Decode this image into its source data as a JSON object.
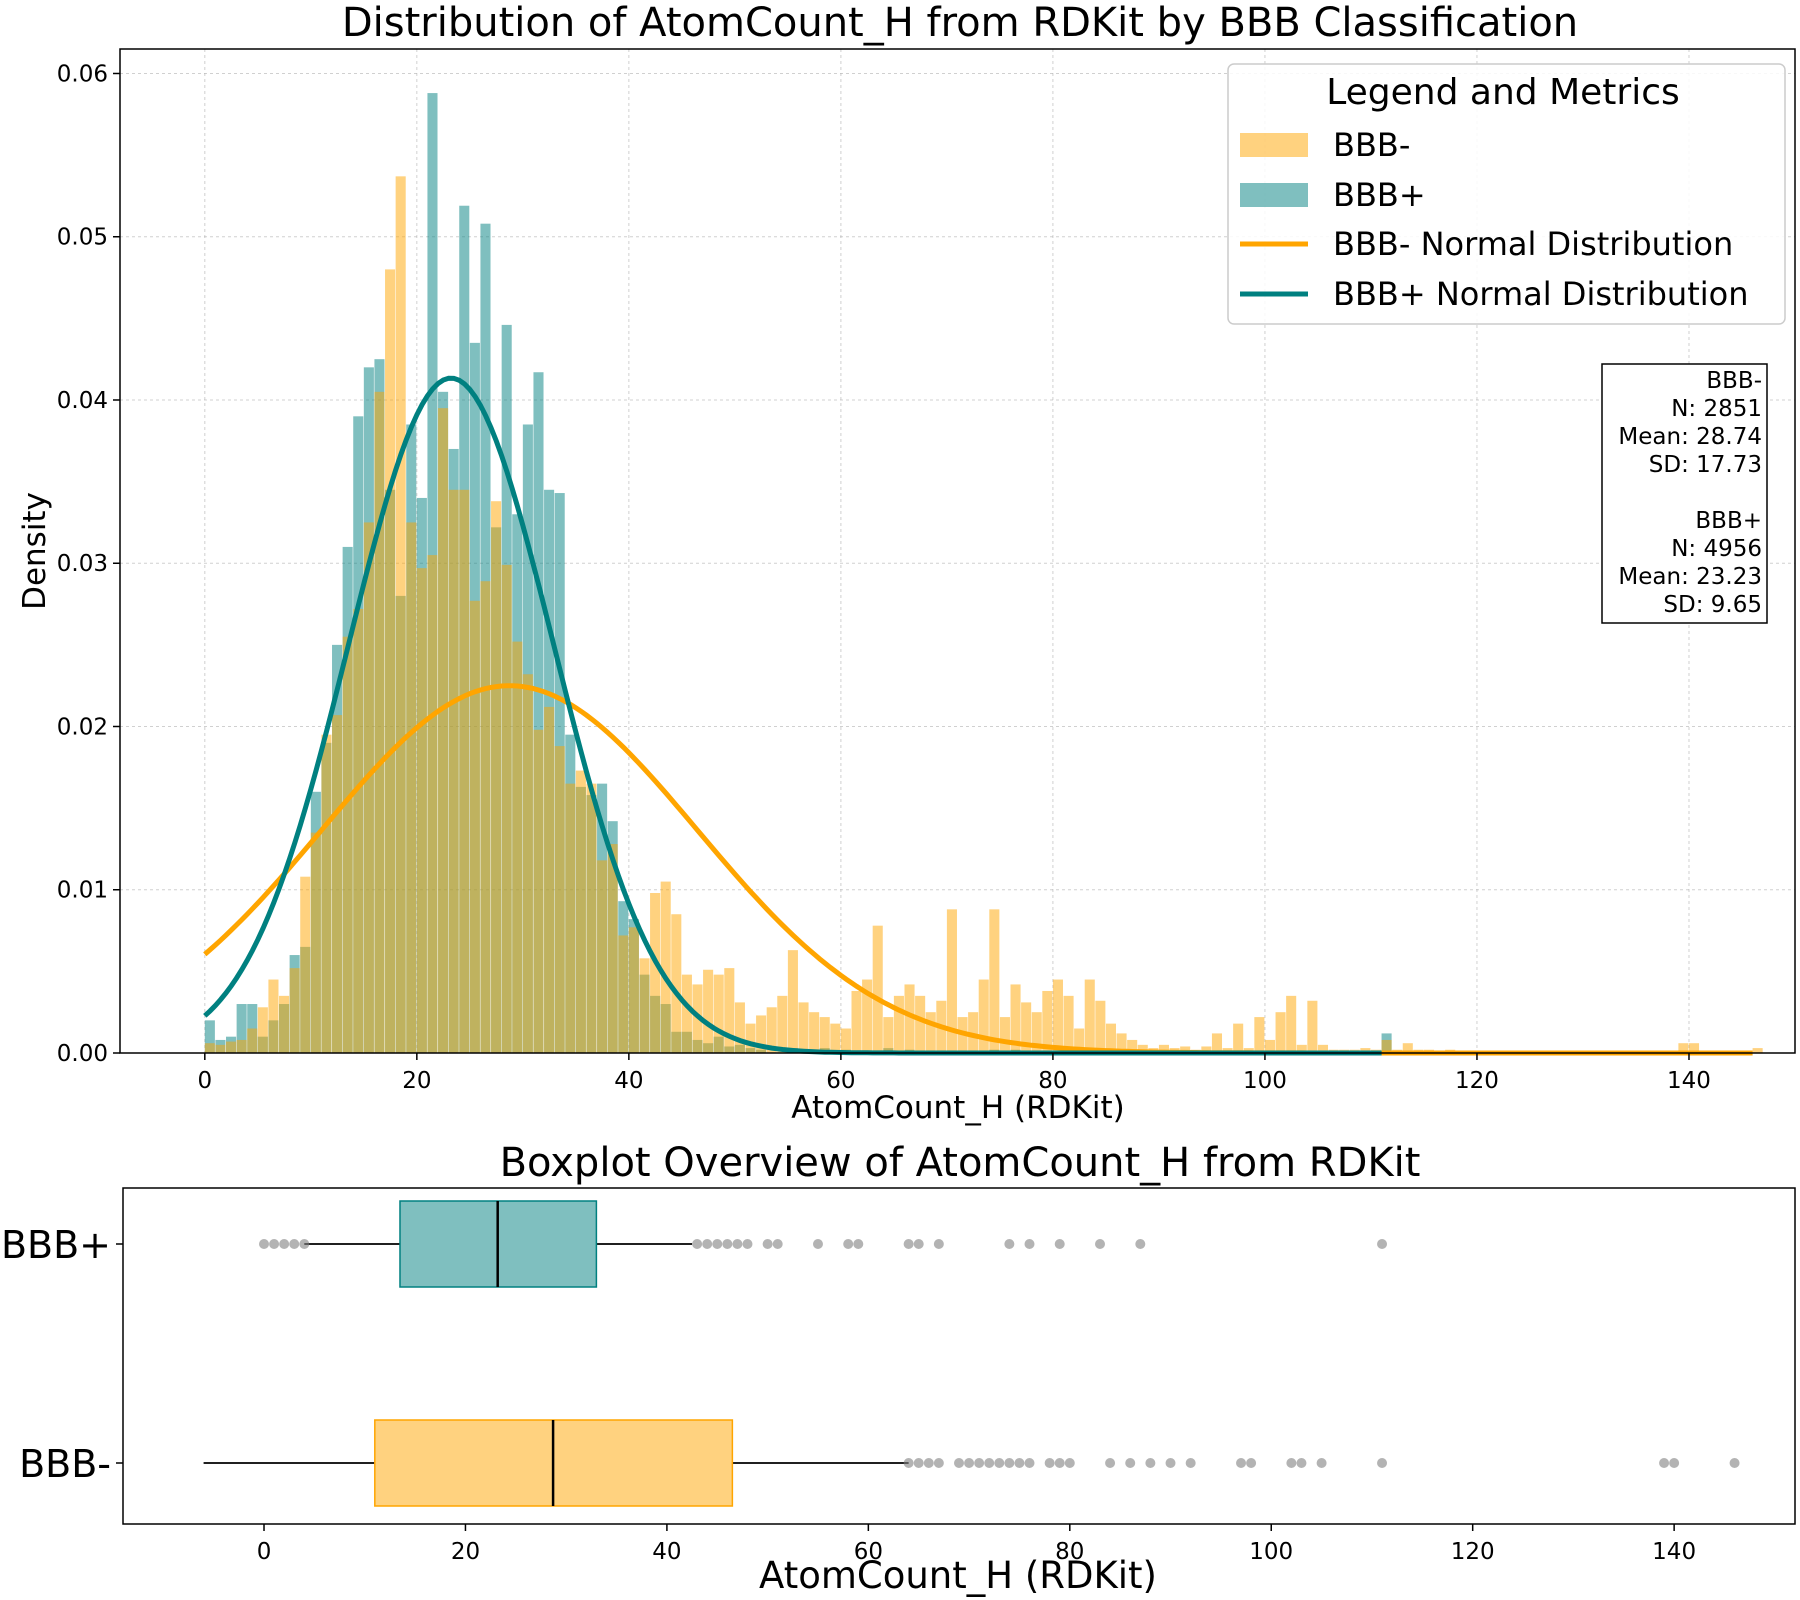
{
  "figure": {
    "colors": {
      "bbb_neg": "#FFA500",
      "bbb_pos": "#008080",
      "outlier": "#808080"
    }
  },
  "chart_data": [
    {
      "type": "histogram",
      "title": "Distribution of AtomCount_H from RDKit by BBB Classification",
      "xlabel": "AtomCount_H (RDKit)",
      "ylabel": "Density",
      "xlim": [
        -8,
        150
      ],
      "ylim": [
        0,
        0.0615
      ],
      "x_ticks": [
        0,
        20,
        40,
        60,
        80,
        100,
        120,
        140
      ],
      "y_ticks": [
        0.0,
        0.01,
        0.02,
        0.03,
        0.04,
        0.05,
        0.06
      ],
      "y_tick_labels": [
        "0.00",
        "0.01",
        "0.02",
        "0.03",
        "0.04",
        "0.05",
        "0.06"
      ],
      "grid": true,
      "bin_width": 0.95,
      "series": [
        {
          "name": "BBB+",
          "color": "#008080",
          "opacity": 0.5,
          "bins": [
            [
              0,
              0.002
            ],
            [
              1,
              0.0008
            ],
            [
              2,
              0.001
            ],
            [
              3,
              0.003
            ],
            [
              4,
              0.003
            ],
            [
              5,
              0.001
            ],
            [
              6,
              0.002
            ],
            [
              7,
              0.003
            ],
            [
              8,
              0.006
            ],
            [
              9,
              0.0065
            ],
            [
              10,
              0.016
            ],
            [
              11,
              0.019
            ],
            [
              12,
              0.025
            ],
            [
              13,
              0.031
            ],
            [
              14,
              0.039
            ],
            [
              15,
              0.042
            ],
            [
              16,
              0.0425
            ],
            [
              17,
              0.0345
            ],
            [
              18,
              0.028
            ],
            [
              19,
              0.0385
            ],
            [
              20,
              0.034
            ],
            [
              21,
              0.0588
            ],
            [
              22,
              0.0405
            ],
            [
              23,
              0.037
            ],
            [
              24,
              0.0519
            ],
            [
              25,
              0.0435
            ],
            [
              26,
              0.0508
            ],
            [
              27,
              0.0322
            ],
            [
              28,
              0.0446
            ],
            [
              29,
              0.033
            ],
            [
              30,
              0.0385
            ],
            [
              31,
              0.0417
            ],
            [
              32,
              0.0345
            ],
            [
              33,
              0.0343
            ],
            [
              34,
              0.0195
            ],
            [
              35,
              0.0163
            ],
            [
              36,
              0.0158
            ],
            [
              37,
              0.0165
            ],
            [
              38,
              0.0142
            ],
            [
              39,
              0.0093
            ],
            [
              40,
              0.0082
            ],
            [
              41,
              0.0048
            ],
            [
              42,
              0.0035
            ],
            [
              43,
              0.003
            ],
            [
              44,
              0.0013
            ],
            [
              45,
              0.0013
            ],
            [
              46,
              0.0008
            ],
            [
              47,
              0.0006
            ],
            [
              48,
              0.001
            ],
            [
              49,
              0.0004
            ],
            [
              50,
              0.0005
            ],
            [
              51,
              0.0003
            ],
            [
              52,
              0.0002
            ],
            [
              55,
              0.0003
            ],
            [
              58,
              0.0003
            ],
            [
              60,
              0.0002
            ],
            [
              64,
              0.0003
            ],
            [
              66,
              0.0002
            ],
            [
              74,
              0.0002
            ],
            [
              76,
              0.0002
            ],
            [
              111,
              0.0012
            ]
          ]
        },
        {
          "name": "BBB-",
          "color": "#FFA500",
          "opacity": 0.5,
          "bins": [
            [
              0,
              0.0006
            ],
            [
              1,
              0.0005
            ],
            [
              2,
              0.0007
            ],
            [
              3,
              0.0008
            ],
            [
              4,
              0.0015
            ],
            [
              5,
              0.0028
            ],
            [
              6,
              0.0045
            ],
            [
              7,
              0.0035
            ],
            [
              8,
              0.0052
            ],
            [
              9,
              0.0108
            ],
            [
              10,
              0.0135
            ],
            [
              11,
              0.0195
            ],
            [
              12,
              0.0207
            ],
            [
              13,
              0.0255
            ],
            [
              14,
              0.0272
            ],
            [
              15,
              0.0325
            ],
            [
              16,
              0.0405
            ],
            [
              17,
              0.048
            ],
            [
              18,
              0.0537
            ],
            [
              19,
              0.0325
            ],
            [
              20,
              0.0297
            ],
            [
              21,
              0.0305
            ],
            [
              22,
              0.0395
            ],
            [
              23,
              0.0345
            ],
            [
              24,
              0.0345
            ],
            [
              25,
              0.0277
            ],
            [
              26,
              0.0289
            ],
            [
              27,
              0.0338
            ],
            [
              28,
              0.0299
            ],
            [
              29,
              0.0252
            ],
            [
              30,
              0.0232
            ],
            [
              31,
              0.0198
            ],
            [
              32,
              0.0212
            ],
            [
              33,
              0.0188
            ],
            [
              34,
              0.0165
            ],
            [
              35,
              0.0173
            ],
            [
              36,
              0.0165
            ],
            [
              37,
              0.0118
            ],
            [
              38,
              0.0128
            ],
            [
              39,
              0.0072
            ],
            [
              40,
              0.0077
            ],
            [
              41,
              0.0058
            ],
            [
              42,
              0.0098
            ],
            [
              43,
              0.0105
            ],
            [
              44,
              0.0085
            ],
            [
              45,
              0.0048
            ],
            [
              46,
              0.0042
            ],
            [
              47,
              0.0051
            ],
            [
              48,
              0.0048
            ],
            [
              49,
              0.0052
            ],
            [
              50,
              0.0031
            ],
            [
              51,
              0.0018
            ],
            [
              52,
              0.0023
            ],
            [
              53,
              0.0028
            ],
            [
              54,
              0.0035
            ],
            [
              55,
              0.0063
            ],
            [
              56,
              0.0031
            ],
            [
              57,
              0.0025
            ],
            [
              58,
              0.0022
            ],
            [
              59,
              0.0018
            ],
            [
              60,
              0.0015
            ],
            [
              61,
              0.0038
            ],
            [
              62,
              0.0045
            ],
            [
              63,
              0.0078
            ],
            [
              64,
              0.0022
            ],
            [
              65,
              0.0035
            ],
            [
              66,
              0.0042
            ],
            [
              67,
              0.0035
            ],
            [
              68,
              0.0025
            ],
            [
              69,
              0.0032
            ],
            [
              70,
              0.0088
            ],
            [
              71,
              0.0022
            ],
            [
              72,
              0.0025
            ],
            [
              73,
              0.0045
            ],
            [
              74,
              0.0088
            ],
            [
              75,
              0.0022
            ],
            [
              76,
              0.0042
            ],
            [
              77,
              0.0031
            ],
            [
              78,
              0.0025
            ],
            [
              79,
              0.0038
            ],
            [
              80,
              0.0045
            ],
            [
              81,
              0.0035
            ],
            [
              82,
              0.0015
            ],
            [
              83,
              0.0045
            ],
            [
              84,
              0.0032
            ],
            [
              85,
              0.0018
            ],
            [
              86,
              0.0012
            ],
            [
              87,
              0.0008
            ],
            [
              88,
              0.0005
            ],
            [
              89,
              0.0003
            ],
            [
              90,
              0.0005
            ],
            [
              91,
              0.0003
            ],
            [
              92,
              0.0004
            ],
            [
              93,
              0.0002
            ],
            [
              94,
              0.0004
            ],
            [
              95,
              0.0012
            ],
            [
              96,
              0.0003
            ],
            [
              97,
              0.0018
            ],
            [
              98,
              0.0003
            ],
            [
              99,
              0.0022
            ],
            [
              100,
              0.0008
            ],
            [
              101,
              0.0025
            ],
            [
              102,
              0.0035
            ],
            [
              103,
              0.0005
            ],
            [
              104,
              0.0032
            ],
            [
              105,
              0.0005
            ],
            [
              106,
              0.0002
            ],
            [
              107,
              0.0002
            ],
            [
              108,
              0.0002
            ],
            [
              109,
              0.0003
            ],
            [
              110,
              0.0002
            ],
            [
              111,
              0.0008
            ],
            [
              112,
              0.0002
            ],
            [
              113,
              0.0006
            ],
            [
              114,
              0.0002
            ],
            [
              115,
              0.0002
            ],
            [
              116,
              0.0001
            ],
            [
              117,
              0.0002
            ],
            [
              118,
              0.0001
            ],
            [
              119,
              0.0001
            ],
            [
              120,
              0.0001
            ],
            [
              122,
              0.0001
            ],
            [
              125,
              0.0001
            ],
            [
              128,
              0.0001
            ],
            [
              130,
              0.0001
            ],
            [
              133,
              0.0001
            ],
            [
              135,
              0.0001
            ],
            [
              137,
              0.0001
            ],
            [
              139,
              0.0006
            ],
            [
              140,
              0.0006
            ],
            [
              141,
              0.0001
            ],
            [
              143,
              0.0001
            ],
            [
              145,
              0.0001
            ],
            [
              146,
              0.0003
            ]
          ]
        }
      ],
      "normal_curves": [
        {
          "name": "BBB- Normal Distribution",
          "color": "#FFA500",
          "mean": 28.74,
          "sd": 17.73,
          "x_range": [
            0,
            146
          ]
        },
        {
          "name": "BBB+ Normal Distribution",
          "color": "#008080",
          "mean": 23.23,
          "sd": 9.65,
          "x_range": [
            0,
            111
          ]
        }
      ],
      "legend": {
        "title": "Legend and Metrics",
        "placement": "top-right",
        "entries": [
          {
            "label": "BBB-",
            "kind": "patch",
            "color": "#FFA500"
          },
          {
            "label": "BBB+",
            "kind": "patch",
            "color": "#008080"
          },
          {
            "label": "BBB- Normal Distribution",
            "kind": "line",
            "color": "#FFA500"
          },
          {
            "label": "BBB+ Normal Distribution",
            "kind": "line",
            "color": "#008080"
          }
        ]
      },
      "metrics_box": {
        "placement": "right",
        "lines": [
          "BBB-",
          "N: 2851",
          "Mean: 28.74",
          "SD: 17.73",
          "",
          "BBB+",
          "N: 4956",
          "Mean: 23.23",
          "SD: 9.65"
        ]
      }
    },
    {
      "type": "boxplot",
      "title": "Boxplot Overview of AtomCount_H from RDKit",
      "xlabel": "AtomCount_H (RDKit)",
      "xlim": [
        -14,
        152
      ],
      "x_ticks": [
        0,
        20,
        40,
        60,
        80,
        100,
        120,
        140
      ],
      "categories": [
        "BBB+",
        "BBB-"
      ],
      "boxes": [
        {
          "name": "BBB+",
          "color": "#008080",
          "whisker_low": 4,
          "q1": 13.5,
          "median": 23.2,
          "q3": 33,
          "whisker_high": 42.5,
          "outliers": [
            0,
            1,
            2,
            3,
            4,
            43,
            44,
            45,
            46,
            47,
            48,
            50,
            51,
            55,
            58,
            59,
            64,
            65,
            67,
            74,
            76,
            79,
            83,
            87,
            111
          ]
        },
        {
          "name": "BBB-",
          "color": "#FFA500",
          "whisker_low": -6,
          "q1": 11,
          "median": 28.7,
          "q3": 46.5,
          "whisker_high": 64,
          "outliers": [
            64,
            65,
            66,
            67,
            69,
            70,
            71,
            72,
            73,
            74,
            75,
            76,
            78,
            79,
            80,
            84,
            86,
            88,
            90,
            92,
            97,
            98,
            102,
            103,
            105,
            111,
            139,
            140,
            146
          ]
        }
      ]
    }
  ]
}
